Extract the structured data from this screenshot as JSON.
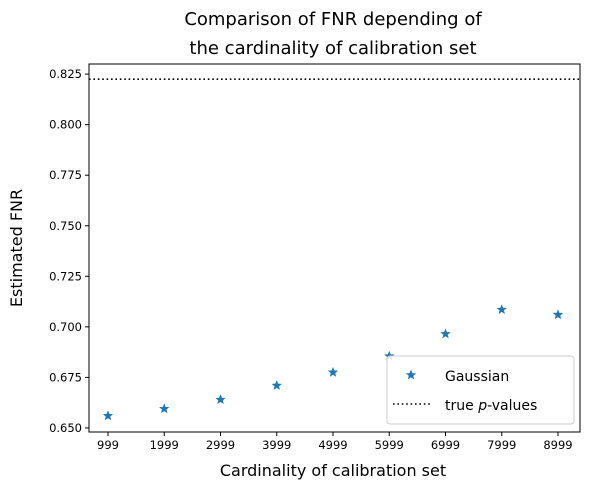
{
  "chart_data": {
    "type": "scatter",
    "title_line1": "Comparison of FNR depending of",
    "title_line2": "the cardinality of calibration set",
    "xlabel": "Cardinality of calibration set",
    "ylabel": "Estimated FNR",
    "categories": [
      "999",
      "1999",
      "2999",
      "3999",
      "4999",
      "5999",
      "6999",
      "7999",
      "8999"
    ],
    "ylim": [
      0.648,
      0.83
    ],
    "yticks": [
      0.65,
      0.675,
      0.7,
      0.725,
      0.75,
      0.775,
      0.8,
      0.825
    ],
    "ytick_labels": [
      "0.650",
      "0.675",
      "0.700",
      "0.725",
      "0.750",
      "0.775",
      "0.800",
      "0.825"
    ],
    "series": [
      {
        "name": "Gaussian",
        "marker": "star",
        "color": "#1f77b4",
        "values": [
          0.656,
          0.6595,
          0.664,
          0.671,
          0.6775,
          0.6855,
          0.6965,
          0.7085,
          0.706
        ]
      }
    ],
    "reference_line": {
      "name_prefix": "true ",
      "name_italic": "p",
      "name_suffix": "-values",
      "value": 0.8225,
      "style": "dotted",
      "color": "#000000"
    },
    "legend": {
      "placement": "lower-right"
    },
    "grid": false
  }
}
